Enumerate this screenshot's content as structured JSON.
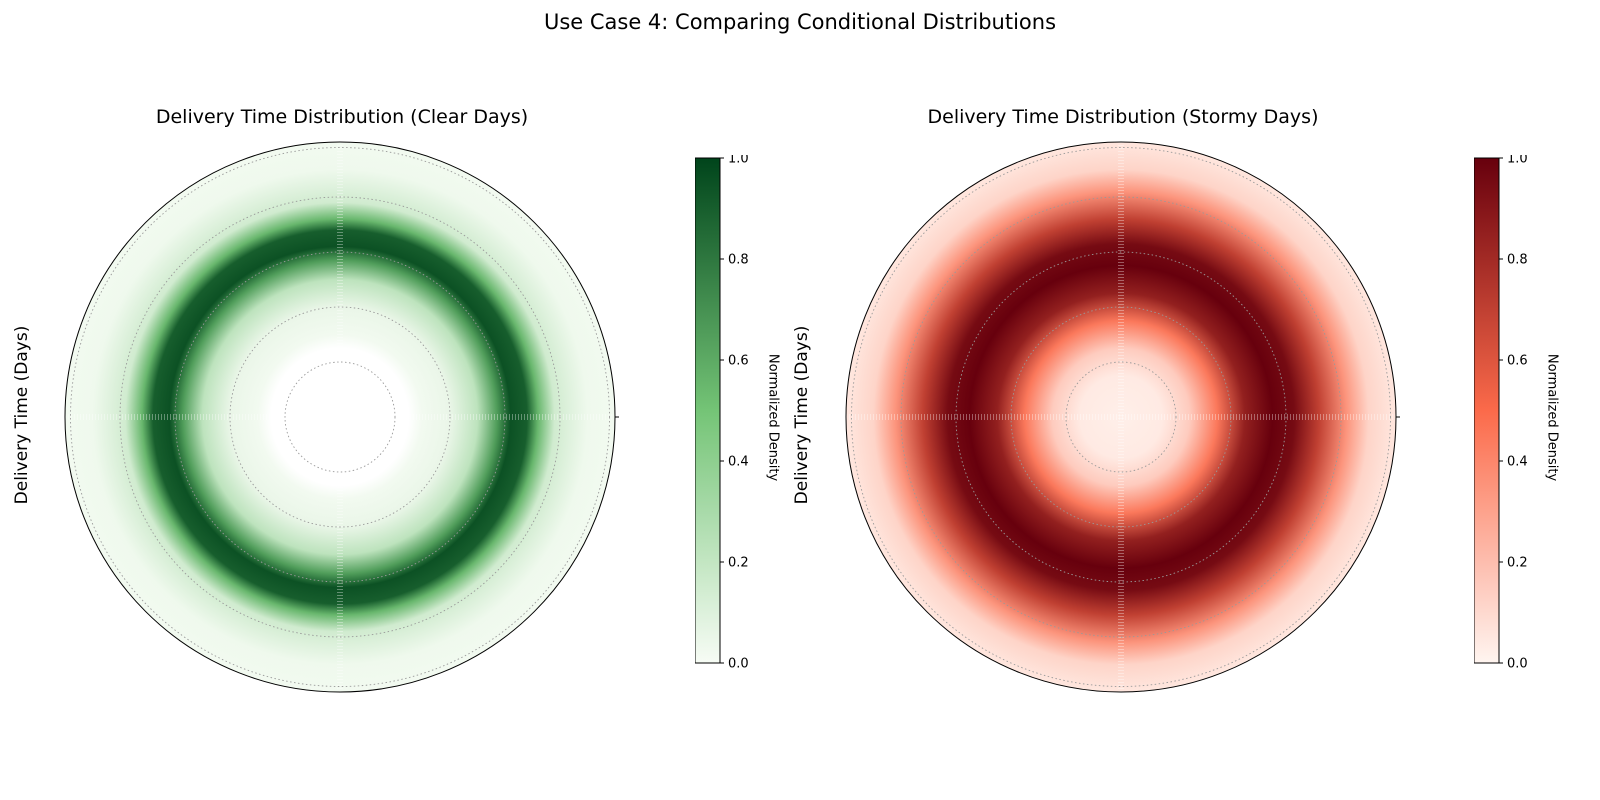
{
  "figure": {
    "suptitle": "Use Case 4: Comparing Conditional Distributions"
  },
  "chart_data": [
    {
      "type": "heatmap",
      "projection": "polar",
      "title": "Delivery Time Distribution (Clear Days)",
      "ylabel": "Delivery Time (Days)",
      "colormap": "Greens",
      "colors": {
        "low": "#f7fcf5",
        "mid": "#74c476",
        "high": "#00441b"
      },
      "radial_profile": {
        "r": [
          0.0,
          0.25,
          0.3,
          0.4,
          0.5,
          0.57,
          0.62,
          0.68,
          0.72,
          0.78,
          0.9,
          1.0
        ],
        "density": [
          null,
          null,
          0.02,
          0.05,
          0.22,
          0.65,
          0.95,
          0.9,
          0.55,
          0.15,
          0.03,
          0.02
        ]
      },
      "grid": true,
      "colorbar": {
        "label": "Normalized Density",
        "ticks": [
          "0.0",
          "0.2",
          "0.4",
          "0.6",
          "0.8",
          "1.0"
        ],
        "range": [
          0,
          1
        ]
      }
    },
    {
      "type": "heatmap",
      "projection": "polar",
      "title": "Delivery Time Distribution (Stormy Days)",
      "ylabel": "Delivery Time (Days)",
      "colormap": "Reds",
      "colors": {
        "low": "#fff5f0",
        "mid": "#fb6a4a",
        "high": "#67000d"
      },
      "radial_profile": {
        "r": [
          0.0,
          0.15,
          0.25,
          0.35,
          0.45,
          0.55,
          0.63,
          0.72,
          0.82,
          0.9,
          1.0
        ],
        "density": [
          0.02,
          0.04,
          0.15,
          0.45,
          0.85,
          1.0,
          0.95,
          0.7,
          0.35,
          0.12,
          0.05
        ]
      },
      "grid": true,
      "colorbar": {
        "label": "Normalized Density",
        "ticks": [
          "0.0",
          "0.2",
          "0.4",
          "0.6",
          "0.8",
          "1.0"
        ],
        "range": [
          0,
          1
        ]
      }
    }
  ]
}
